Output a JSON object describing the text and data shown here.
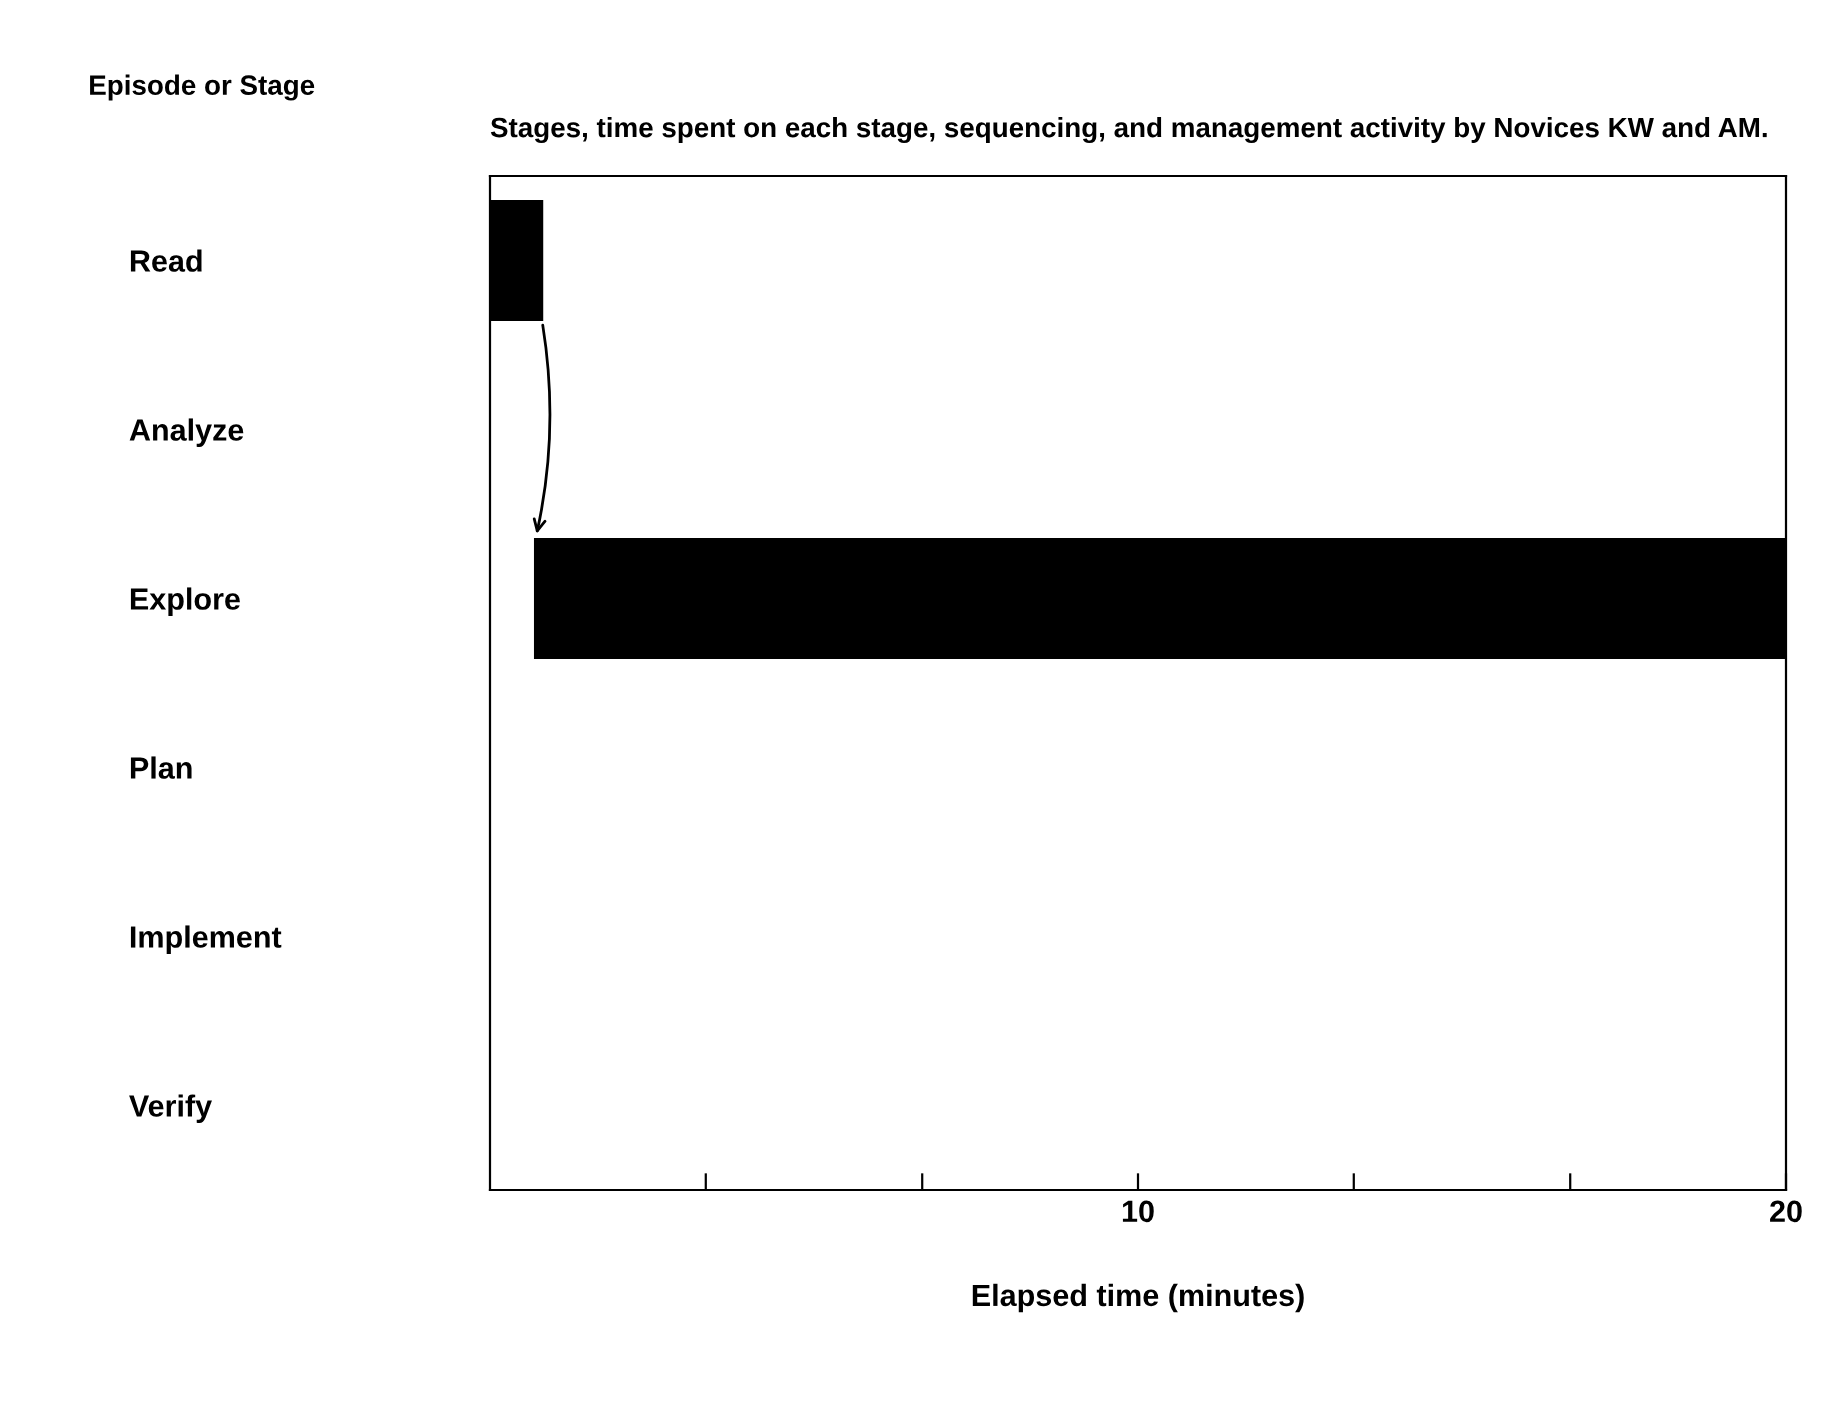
{
  "chart_data": {
    "type": "bar",
    "orientation": "horizontal",
    "title": "Stages, time spent on each stage, sequencing, and management activity by Novices KW and AM.",
    "ylabel": "Episode or Stage",
    "xlabel": "Elapsed time (minutes)",
    "categories": [
      "Read",
      "Analyze",
      "Explore",
      "Plan",
      "Implement",
      "Verify"
    ],
    "values": [
      0.8,
      null,
      19.3,
      null,
      null,
      null
    ],
    "base": [
      0,
      null,
      0.7,
      null,
      null,
      null
    ],
    "color": "#000000",
    "xlim": [
      0,
      20
    ],
    "xticks": [
      {
        "value": 3.33,
        "label": null
      },
      {
        "value": 6.67,
        "label": null
      },
      10,
      {
        "value": 13.33,
        "label": null
      },
      {
        "value": 16.67,
        "label": null
      },
      20
    ],
    "grid": false,
    "legend": false
  }
}
